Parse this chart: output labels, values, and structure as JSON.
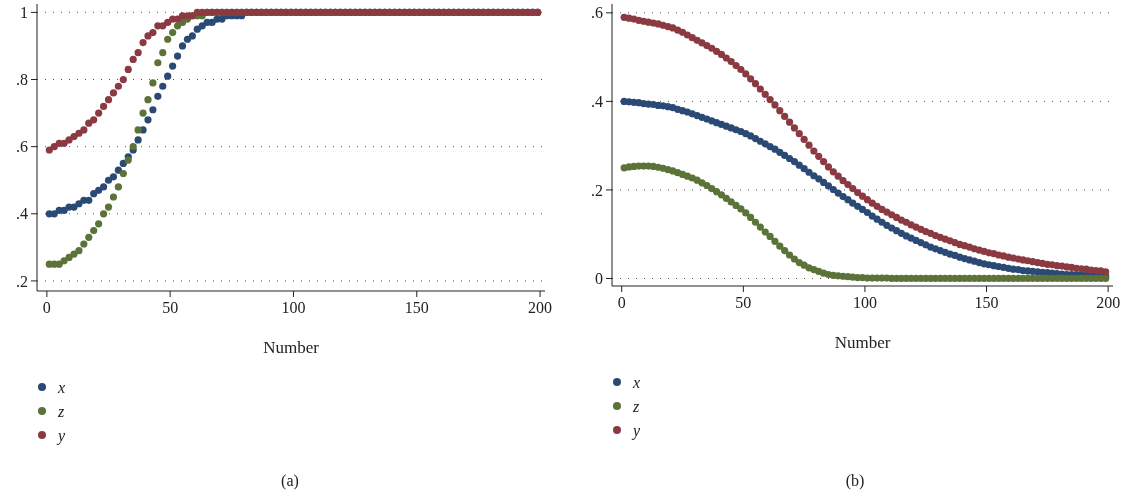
{
  "chart_data": [
    {
      "type": "scatter",
      "xlabel": "Number",
      "annotations": [
        "(a)"
      ],
      "grid": "y",
      "legend": "bottom left",
      "marker": "circle",
      "xlim": [
        -4,
        202
      ],
      "ylim": [
        0.17,
        1.025
      ],
      "xticks": [
        0,
        50,
        100,
        150,
        200
      ],
      "yticks": [
        {
          "value": 0.2,
          "label": ".2"
        },
        {
          "value": 0.4,
          "label": ".4"
        },
        {
          "value": 0.6,
          "label": ".6"
        },
        {
          "value": 0.8,
          "label": ".8"
        },
        1
      ],
      "x": [
        1,
        3,
        5,
        7,
        9,
        11,
        13,
        15,
        17,
        19,
        21,
        23,
        25,
        27,
        29,
        31,
        33,
        35,
        37,
        39,
        41,
        43,
        45,
        47,
        49,
        51,
        53,
        55,
        57,
        59,
        61,
        63,
        65,
        67,
        69,
        71,
        73,
        75,
        77,
        79,
        81,
        83,
        85,
        87,
        89,
        91,
        93,
        95,
        97,
        99,
        101,
        103,
        105,
        107,
        109,
        111,
        113,
        115,
        117,
        119,
        121,
        123,
        125,
        127,
        129,
        131,
        133,
        135,
        137,
        139,
        141,
        143,
        145,
        147,
        149,
        151,
        153,
        155,
        157,
        159,
        161,
        163,
        165,
        167,
        169,
        171,
        173,
        175,
        177,
        179,
        181,
        183,
        185,
        187,
        189,
        191,
        193,
        195,
        197,
        199
      ],
      "series": [
        {
          "name": "x",
          "color": "#2a4a75",
          "values": [
            0.4,
            0.4,
            0.41,
            0.41,
            0.42,
            0.42,
            0.43,
            0.44,
            0.44,
            0.46,
            0.47,
            0.48,
            0.5,
            0.51,
            0.53,
            0.55,
            0.57,
            0.59,
            0.62,
            0.65,
            0.68,
            0.71,
            0.75,
            0.78,
            0.81,
            0.84,
            0.87,
            0.9,
            0.92,
            0.93,
            0.95,
            0.96,
            0.97,
            0.97,
            0.98,
            0.98,
            0.99,
            0.99,
            0.99,
            0.99,
            1,
            1,
            1,
            1,
            1,
            1,
            1,
            1,
            1,
            1,
            1,
            1,
            1,
            1,
            1,
            1,
            1,
            1,
            1,
            1,
            1,
            1,
            1,
            1,
            1,
            1,
            1,
            1,
            1,
            1,
            1,
            1,
            1,
            1,
            1,
            1,
            1,
            1,
            1,
            1,
            1,
            1,
            1,
            1,
            1,
            1,
            1,
            1,
            1,
            1,
            1,
            1,
            1,
            1,
            1,
            1,
            1,
            1,
            1,
            1
          ]
        },
        {
          "name": "z",
          "color": "#5b7238",
          "values": [
            0.25,
            0.25,
            0.25,
            0.26,
            0.27,
            0.28,
            0.29,
            0.31,
            0.33,
            0.35,
            0.37,
            0.4,
            0.42,
            0.45,
            0.48,
            0.52,
            0.56,
            0.6,
            0.65,
            0.7,
            0.74,
            0.79,
            0.85,
            0.88,
            0.92,
            0.94,
            0.96,
            0.97,
            0.98,
            0.99,
            0.99,
            0.99,
            1,
            1,
            1,
            1,
            1,
            1,
            1,
            1,
            1,
            1,
            1,
            1,
            1,
            1,
            1,
            1,
            1,
            1,
            1,
            1,
            1,
            1,
            1,
            1,
            1,
            1,
            1,
            1,
            1,
            1,
            1,
            1,
            1,
            1,
            1,
            1,
            1,
            1,
            1,
            1,
            1,
            1,
            1,
            1,
            1,
            1,
            1,
            1,
            1,
            1,
            1,
            1,
            1,
            1,
            1,
            1,
            1,
            1,
            1,
            1,
            1,
            1,
            1,
            1,
            1,
            1,
            1,
            1
          ]
        },
        {
          "name": "y",
          "color": "#8a3a40",
          "values": [
            0.59,
            0.6,
            0.61,
            0.61,
            0.62,
            0.63,
            0.64,
            0.65,
            0.67,
            0.68,
            0.7,
            0.72,
            0.74,
            0.76,
            0.78,
            0.8,
            0.83,
            0.86,
            0.88,
            0.91,
            0.93,
            0.94,
            0.96,
            0.96,
            0.97,
            0.98,
            0.98,
            0.99,
            0.99,
            0.99,
            1,
            1,
            1,
            1,
            1,
            1,
            1,
            1,
            1,
            1,
            1,
            1,
            1,
            1,
            1,
            1,
            1,
            1,
            1,
            1,
            1,
            1,
            1,
            1,
            1,
            1,
            1,
            1,
            1,
            1,
            1,
            1,
            1,
            1,
            1,
            1,
            1,
            1,
            1,
            1,
            1,
            1,
            1,
            1,
            1,
            1,
            1,
            1,
            1,
            1,
            1,
            1,
            1,
            1,
            1,
            1,
            1,
            1,
            1,
            1,
            1,
            1,
            1,
            1,
            1,
            1,
            1,
            1,
            1,
            1
          ]
        }
      ]
    },
    {
      "type": "scatter",
      "xlabel": "Number",
      "annotations": [
        "(b)"
      ],
      "grid": "y",
      "legend": "bottom left",
      "marker": "circle",
      "xlim": [
        -4,
        202
      ],
      "ylim": [
        -0.017,
        0.62
      ],
      "xticks": [
        0,
        50,
        100,
        150,
        200
      ],
      "yticks": [
        0,
        {
          "value": 0.2,
          "label": ".2"
        },
        {
          "value": 0.4,
          "label": ".4"
        },
        {
          "value": 0.6,
          "label": ".6"
        }
      ],
      "x": [
        1,
        3,
        5,
        7,
        9,
        11,
        13,
        15,
        17,
        19,
        21,
        23,
        25,
        27,
        29,
        31,
        33,
        35,
        37,
        39,
        41,
        43,
        45,
        47,
        49,
        51,
        53,
        55,
        57,
        59,
        61,
        63,
        65,
        67,
        69,
        71,
        73,
        75,
        77,
        79,
        81,
        83,
        85,
        87,
        89,
        91,
        93,
        95,
        97,
        99,
        101,
        103,
        105,
        107,
        109,
        111,
        113,
        115,
        117,
        119,
        121,
        123,
        125,
        127,
        129,
        131,
        133,
        135,
        137,
        139,
        141,
        143,
        145,
        147,
        149,
        151,
        153,
        155,
        157,
        159,
        161,
        163,
        165,
        167,
        169,
        171,
        173,
        175,
        177,
        179,
        181,
        183,
        185,
        187,
        189,
        191,
        193,
        195,
        197,
        199
      ],
      "series": [
        {
          "name": "x",
          "color": "#2a4a75",
          "values": [
            0.4,
            0.399,
            0.398,
            0.397,
            0.395,
            0.394,
            0.393,
            0.391,
            0.39,
            0.388,
            0.386,
            0.382,
            0.379,
            0.376,
            0.372,
            0.368,
            0.364,
            0.36,
            0.356,
            0.352,
            0.348,
            0.344,
            0.34,
            0.336,
            0.332,
            0.327,
            0.322,
            0.316,
            0.31,
            0.304,
            0.298,
            0.292,
            0.285,
            0.278,
            0.271,
            0.264,
            0.256,
            0.248,
            0.24,
            0.232,
            0.225,
            0.217,
            0.209,
            0.201,
            0.193,
            0.185,
            0.178,
            0.17,
            0.163,
            0.156,
            0.149,
            0.141,
            0.134,
            0.127,
            0.12,
            0.114,
            0.108,
            0.102,
            0.096,
            0.091,
            0.086,
            0.081,
            0.076,
            0.071,
            0.067,
            0.063,
            0.059,
            0.055,
            0.052,
            0.048,
            0.045,
            0.042,
            0.039,
            0.036,
            0.033,
            0.031,
            0.029,
            0.027,
            0.025,
            0.023,
            0.021,
            0.02,
            0.018,
            0.017,
            0.016,
            0.015,
            0.014,
            0.013,
            0.012,
            0.011,
            0.01,
            0.009,
            0.009,
            0.008,
            0.008,
            0.007,
            0.007,
            0.006,
            0.006,
            0.005
          ]
        },
        {
          "name": "z",
          "color": "#5b7238",
          "values": [
            0.25,
            0.252,
            0.253,
            0.254,
            0.254,
            0.254,
            0.253,
            0.251,
            0.249,
            0.246,
            0.243,
            0.239,
            0.235,
            0.231,
            0.227,
            0.222,
            0.216,
            0.21,
            0.203,
            0.196,
            0.189,
            0.181,
            0.173,
            0.165,
            0.157,
            0.148,
            0.138,
            0.127,
            0.116,
            0.105,
            0.095,
            0.084,
            0.073,
            0.063,
            0.053,
            0.044,
            0.036,
            0.03,
            0.024,
            0.02,
            0.016,
            0.012,
            0.009,
            0.007,
            0.006,
            0.005,
            0.004,
            0.003,
            0.002,
            0.002,
            0.001,
            0.001,
            0.001,
            0.001,
            0.001,
            0,
            0,
            0,
            0,
            0,
            0,
            0,
            0,
            0,
            0,
            0,
            0,
            0,
            0,
            0,
            0,
            0,
            0,
            0,
            0,
            0,
            0,
            0,
            0,
            0,
            0,
            0,
            0,
            0,
            0,
            0,
            0,
            0,
            0,
            0,
            0,
            0,
            0,
            0,
            0,
            0,
            0,
            0,
            0,
            0
          ]
        },
        {
          "name": "y",
          "color": "#8a3a40",
          "values": [
            0.59,
            0.588,
            0.586,
            0.583,
            0.581,
            0.579,
            0.577,
            0.575,
            0.572,
            0.569,
            0.566,
            0.561,
            0.556,
            0.55,
            0.544,
            0.538,
            0.532,
            0.526,
            0.52,
            0.513,
            0.506,
            0.498,
            0.49,
            0.481,
            0.472,
            0.462,
            0.451,
            0.44,
            0.428,
            0.416,
            0.404,
            0.392,
            0.379,
            0.366,
            0.353,
            0.34,
            0.327,
            0.314,
            0.301,
            0.288,
            0.276,
            0.264,
            0.252,
            0.241,
            0.231,
            0.221,
            0.212,
            0.203,
            0.194,
            0.186,
            0.178,
            0.17,
            0.163,
            0.156,
            0.15,
            0.144,
            0.138,
            0.132,
            0.127,
            0.121,
            0.116,
            0.111,
            0.106,
            0.102,
            0.097,
            0.093,
            0.089,
            0.085,
            0.081,
            0.077,
            0.074,
            0.071,
            0.067,
            0.064,
            0.061,
            0.058,
            0.056,
            0.053,
            0.051,
            0.048,
            0.046,
            0.044,
            0.042,
            0.04,
            0.038,
            0.036,
            0.034,
            0.032,
            0.031,
            0.029,
            0.028,
            0.026,
            0.025,
            0.023,
            0.022,
            0.021,
            0.019,
            0.018,
            0.017,
            0.015
          ]
        }
      ]
    }
  ]
}
